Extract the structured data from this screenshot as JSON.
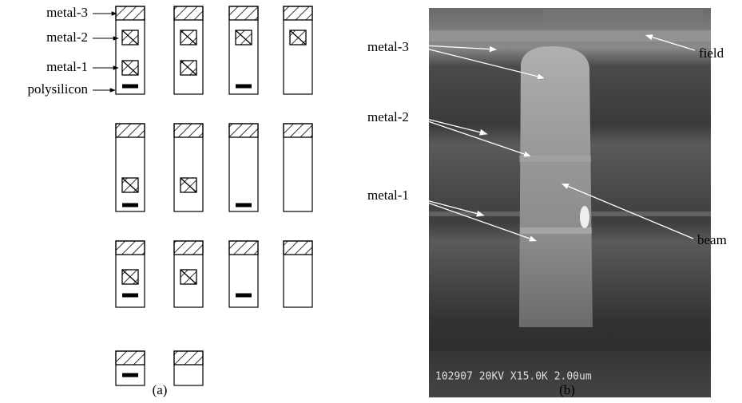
{
  "panel_a": {
    "labels": [
      "metal-3",
      "metal-2",
      "metal-1",
      "polysilicon"
    ],
    "caption": "(a)"
  },
  "panel_b": {
    "labels": {
      "metal_3": "metal-3",
      "metal_2": "metal-2",
      "metal_1": "metal-1",
      "field": "field",
      "beam": "beam"
    },
    "micrograph_text": "102907 20KV X15.0K 2.00um",
    "caption": "(b)"
  }
}
